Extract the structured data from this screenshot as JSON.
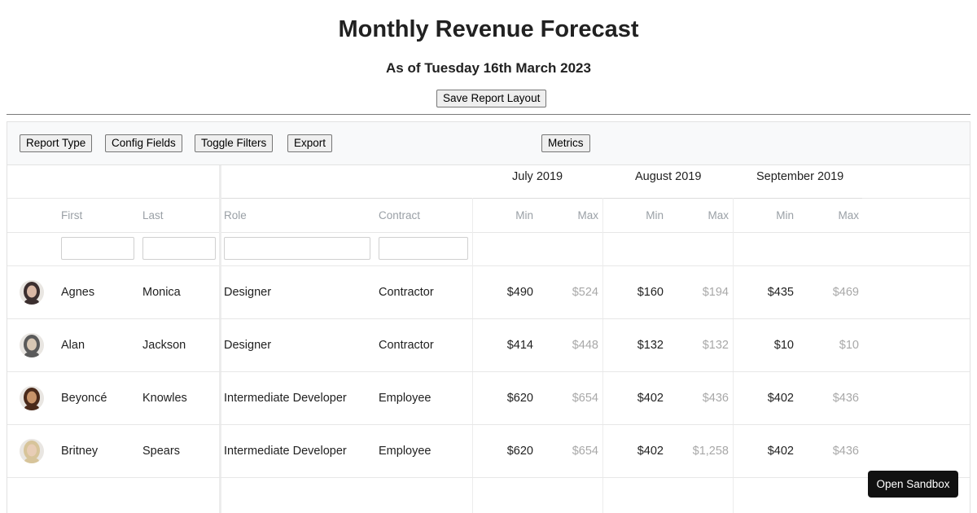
{
  "page": {
    "title": "Monthly Revenue Forecast",
    "subtitle": "As of Tuesday 16th March 2023",
    "save_layout_label": "Save Report Layout"
  },
  "toolbar": {
    "report_type_label": "Report Type",
    "config_fields_label": "Config Fields",
    "toggle_filters_label": "Toggle Filters",
    "export_label": "Export",
    "metrics_label": "Metrics"
  },
  "months": [
    "July 2019",
    "August 2019",
    "September 2019"
  ],
  "columns": {
    "first": "First",
    "last": "Last",
    "role": "Role",
    "contract": "Contract",
    "min": "Min",
    "max": "Max"
  },
  "rows": [
    {
      "first": "Agnes",
      "last": "Monica",
      "role": "Designer",
      "contract": "Contractor",
      "avatar_icon": "person-avatar-icon",
      "values": [
        [
          "$490",
          "$524"
        ],
        [
          "$160",
          "$194"
        ],
        [
          "$435",
          "$469"
        ]
      ]
    },
    {
      "first": "Alan",
      "last": "Jackson",
      "role": "Designer",
      "contract": "Contractor",
      "avatar_icon": "person-avatar-icon",
      "values": [
        [
          "$414",
          "$448"
        ],
        [
          "$132",
          "$132"
        ],
        [
          "$10",
          "$10"
        ]
      ]
    },
    {
      "first": "Beyoncé",
      "last": "Knowles",
      "role": "Intermediate Developer",
      "contract": "Employee",
      "avatar_icon": "person-avatar-icon",
      "values": [
        [
          "$620",
          "$654"
        ],
        [
          "$402",
          "$436"
        ],
        [
          "$402",
          "$436"
        ]
      ]
    },
    {
      "first": "Britney",
      "last": "Spears",
      "role": "Intermediate Developer",
      "contract": "Employee",
      "avatar_icon": "person-avatar-icon",
      "values": [
        [
          "$620",
          "$654"
        ],
        [
          "$402",
          "$1,258"
        ],
        [
          "$402",
          "$436"
        ]
      ]
    }
  ],
  "sandbox_label": "Open Sandbox",
  "colors": {
    "max_value": "#a8a8a8",
    "header_text": "#9aa0a6",
    "toolbar_bg": "#f8f9fa",
    "sandbox_bg": "#111111"
  }
}
